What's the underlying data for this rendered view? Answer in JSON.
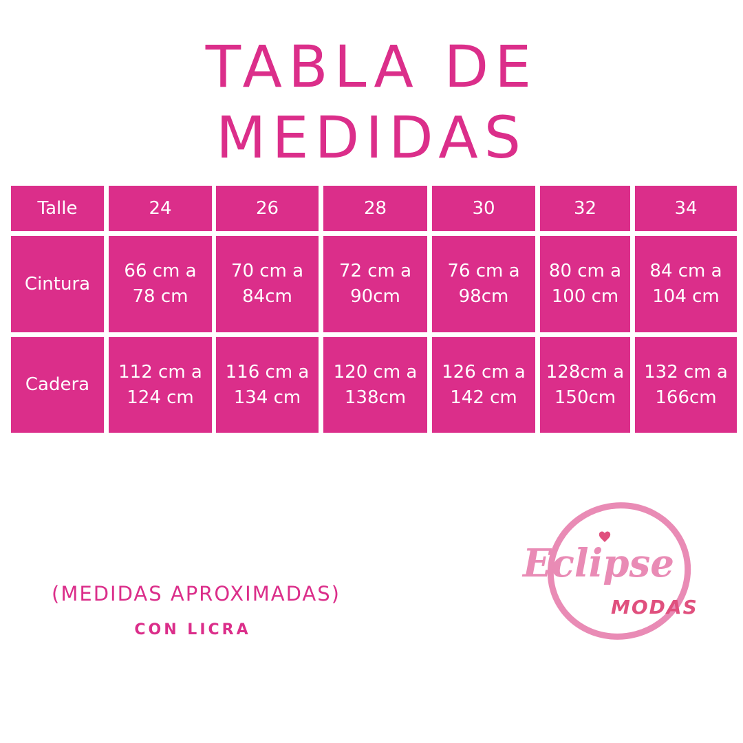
{
  "title_line1": "TABLA DE",
  "title_line2": "MEDIDAS",
  "table": {
    "header": [
      "Talle",
      "24",
      "26",
      "28",
      "30",
      "32",
      "34"
    ],
    "rows": [
      [
        "Cintura",
        "66 cm a\n78 cm",
        "70 cm a\n84cm",
        "72 cm a\n90cm",
        "76 cm a\n98cm",
        "80 cm a\n100 cm",
        "84 cm a\n104 cm"
      ],
      [
        "Cadera",
        "112 cm a\n124 cm",
        "116 cm a\n134 cm",
        "120 cm a\n138cm",
        "126 cm a\n142 cm",
        "128cm a\n150cm",
        "132 cm a\n166cm"
      ]
    ]
  },
  "note_line1": "(MEDIDAS APROXIMADAS)",
  "note_line2": "CON LICRA",
  "logo": {
    "text1": "Eclipse",
    "text2": "MODAS"
  },
  "colors": {
    "accent": "#db2e8a",
    "logo_light": "#e98bb5",
    "logo_dark": "#e0507e"
  }
}
